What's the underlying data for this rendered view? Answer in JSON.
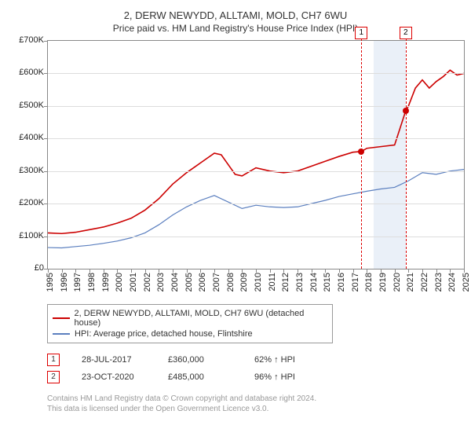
{
  "title": "2, DERW NEWYDD, ALLTAMI, MOLD, CH7 6WU",
  "subtitle": "Price paid vs. HM Land Registry's House Price Index (HPI)",
  "chart": {
    "ylim": [
      0,
      700000
    ],
    "ytick_step": 100000,
    "y_labels": [
      "£0",
      "£100K",
      "£200K",
      "£300K",
      "£400K",
      "£500K",
      "£600K",
      "£700K"
    ],
    "xlim": [
      1995,
      2025
    ],
    "x_labels": [
      "1995",
      "1996",
      "1997",
      "1998",
      "1999",
      "2000",
      "2001",
      "2002",
      "2003",
      "2004",
      "2005",
      "2006",
      "2007",
      "2008",
      "2009",
      "2010",
      "2011",
      "2012",
      "2013",
      "2014",
      "2015",
      "2016",
      "2017",
      "2018",
      "2019",
      "2020",
      "2021",
      "2022",
      "2023",
      "2024",
      "2025"
    ],
    "grid_color": "#dddddd",
    "axis_color": "#888888",
    "series": [
      {
        "name": "property",
        "color": "#cc0000",
        "width": 1.6,
        "points": [
          [
            1995,
            110000
          ],
          [
            1996,
            108000
          ],
          [
            1997,
            112000
          ],
          [
            1998,
            120000
          ],
          [
            1999,
            128000
          ],
          [
            2000,
            140000
          ],
          [
            2001,
            155000
          ],
          [
            2002,
            180000
          ],
          [
            2003,
            215000
          ],
          [
            2004,
            260000
          ],
          [
            2005,
            295000
          ],
          [
            2006,
            325000
          ],
          [
            2007,
            355000
          ],
          [
            2007.5,
            350000
          ],
          [
            2008,
            320000
          ],
          [
            2008.5,
            290000
          ],
          [
            2009,
            285000
          ],
          [
            2010,
            310000
          ],
          [
            2011,
            300000
          ],
          [
            2012,
            295000
          ],
          [
            2013,
            300000
          ],
          [
            2014,
            315000
          ],
          [
            2015,
            330000
          ],
          [
            2016,
            345000
          ],
          [
            2017,
            358000
          ],
          [
            2017.6,
            360000
          ],
          [
            2018,
            370000
          ],
          [
            2019,
            375000
          ],
          [
            2020,
            380000
          ],
          [
            2020.8,
            485000
          ],
          [
            2021,
            500000
          ],
          [
            2021.5,
            555000
          ],
          [
            2022,
            580000
          ],
          [
            2022.5,
            555000
          ],
          [
            2023,
            575000
          ],
          [
            2023.5,
            590000
          ],
          [
            2024,
            610000
          ],
          [
            2024.5,
            595000
          ],
          [
            2025,
            600000
          ]
        ]
      },
      {
        "name": "hpi",
        "color": "#5b7fbf",
        "width": 1.2,
        "points": [
          [
            1995,
            65000
          ],
          [
            1996,
            64000
          ],
          [
            1997,
            68000
          ],
          [
            1998,
            72000
          ],
          [
            1999,
            78000
          ],
          [
            2000,
            85000
          ],
          [
            2001,
            95000
          ],
          [
            2002,
            110000
          ],
          [
            2003,
            135000
          ],
          [
            2004,
            165000
          ],
          [
            2005,
            190000
          ],
          [
            2006,
            210000
          ],
          [
            2007,
            225000
          ],
          [
            2008,
            205000
          ],
          [
            2009,
            185000
          ],
          [
            2010,
            195000
          ],
          [
            2011,
            190000
          ],
          [
            2012,
            188000
          ],
          [
            2013,
            190000
          ],
          [
            2014,
            200000
          ],
          [
            2015,
            210000
          ],
          [
            2016,
            222000
          ],
          [
            2017,
            230000
          ],
          [
            2018,
            238000
          ],
          [
            2019,
            245000
          ],
          [
            2020,
            250000
          ],
          [
            2021,
            270000
          ],
          [
            2022,
            295000
          ],
          [
            2023,
            290000
          ],
          [
            2024,
            300000
          ],
          [
            2025,
            305000
          ]
        ]
      }
    ],
    "markers": [
      {
        "label": "1",
        "year": 2017.6,
        "value": 360000
      },
      {
        "label": "2",
        "year": 2020.8,
        "value": 485000
      }
    ],
    "band": {
      "start": 2018.5,
      "end": 2020.8,
      "color": "#eaf0f8"
    },
    "marker_dot_color": "#cc0000"
  },
  "legend": {
    "items": [
      {
        "color": "#cc0000",
        "label": "2, DERW NEWYDD, ALLTAMI, MOLD, CH7 6WU (detached house)"
      },
      {
        "color": "#5b7fbf",
        "label": "HPI: Average price, detached house, Flintshire"
      }
    ]
  },
  "sales": [
    {
      "label": "1",
      "date": "28-JUL-2017",
      "price": "£360,000",
      "hpi": "62% ↑ HPI"
    },
    {
      "label": "2",
      "date": "23-OCT-2020",
      "price": "£485,000",
      "hpi": "96% ↑ HPI"
    }
  ],
  "footer": {
    "line1": "Contains HM Land Registry data © Crown copyright and database right 2024.",
    "line2": "This data is licensed under the Open Government Licence v3.0."
  }
}
